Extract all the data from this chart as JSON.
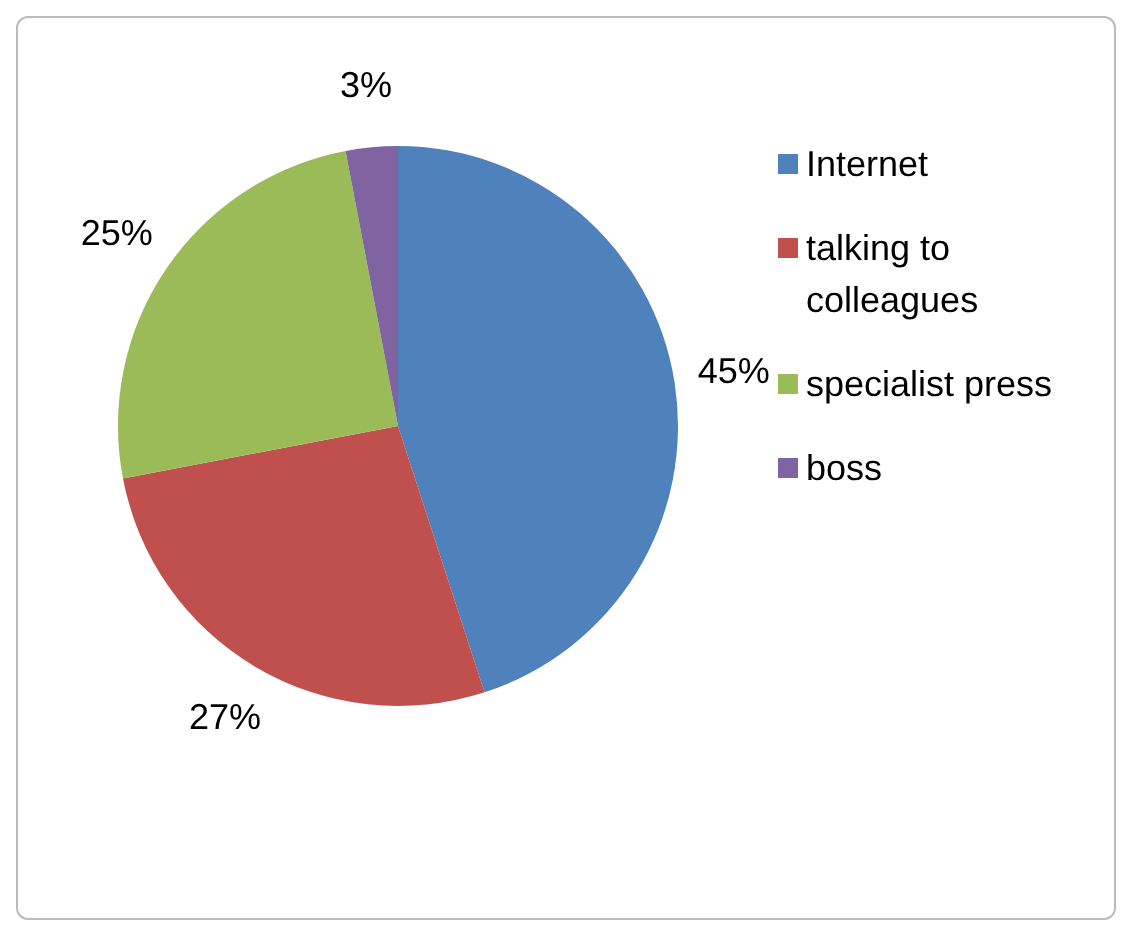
{
  "chart_data": {
    "type": "pie",
    "categories": [
      "Internet",
      "talking to colleagues",
      "specialist press",
      "boss"
    ],
    "values": [
      45,
      27,
      25,
      3
    ],
    "colors": [
      "#4f81bd",
      "#c0504d",
      "#9bbb59",
      "#8064a2"
    ],
    "value_labels": [
      "45%",
      "27%",
      "25%",
      "3%"
    ],
    "legend": "right"
  }
}
